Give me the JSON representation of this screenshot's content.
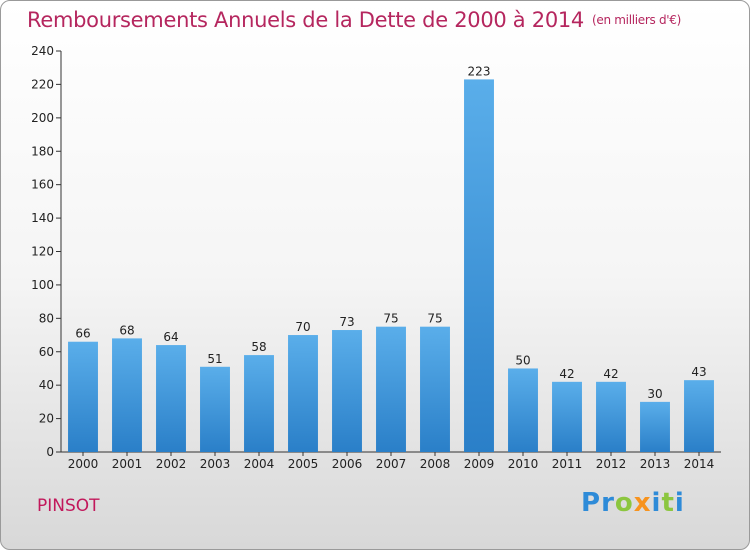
{
  "page": {
    "title": "Remboursements Annuels de la Dette de 2000 à 2014",
    "unit_note": "(en milliers d'€)",
    "commune": "PINSOT",
    "logo": {
      "text": "Proxiti",
      "letters": [
        {
          "ch": "P",
          "color": "#2e8bd8"
        },
        {
          "ch": "r",
          "color": "#2e8bd8"
        },
        {
          "ch": "o",
          "color": "#8cc63f"
        },
        {
          "ch": "x",
          "color": "#f7931e"
        },
        {
          "ch": "i",
          "color": "#2e8bd8"
        },
        {
          "ch": "t",
          "color": "#8cc63f"
        },
        {
          "ch": "i",
          "color": "#2e8bd8"
        }
      ]
    }
  },
  "chart_data": {
    "type": "bar",
    "title": "Remboursements Annuels de la Dette de 2000 à 2014",
    "subtitle": "(en milliers d'€)",
    "xlabel": "",
    "ylabel": "",
    "categories": [
      "2000",
      "2001",
      "2002",
      "2003",
      "2004",
      "2005",
      "2006",
      "2007",
      "2008",
      "2009",
      "2010",
      "2011",
      "2012",
      "2013",
      "2014"
    ],
    "values": [
      66,
      68,
      64,
      51,
      58,
      70,
      73,
      75,
      75,
      223,
      50,
      42,
      42,
      30,
      43
    ],
    "ylim": [
      0,
      240
    ],
    "yticks": [
      0,
      20,
      40,
      60,
      80,
      100,
      120,
      140,
      160,
      180,
      200,
      220,
      240
    ],
    "grid": false,
    "bar_color": "#4a9ee0"
  }
}
